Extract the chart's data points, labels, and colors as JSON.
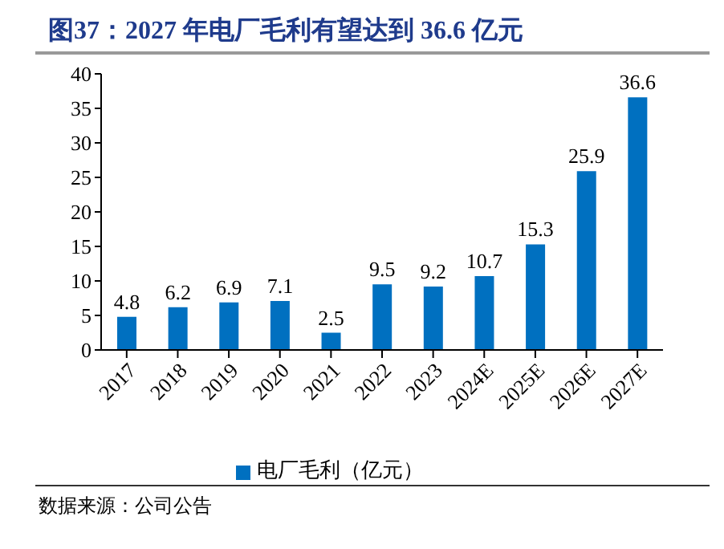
{
  "chart_data": {
    "type": "bar",
    "title": "图37：2027 年电厂毛利有望达到 36.6 亿元",
    "annotations": [
      "数据来源：公司公告"
    ],
    "categories": [
      "2017",
      "2018",
      "2019",
      "2020",
      "2021",
      "2022",
      "2023",
      "2024E",
      "2025E",
      "2026E",
      "2027E"
    ],
    "series": [
      {
        "name": "电厂毛利（亿元）",
        "color": "#0070c0",
        "values": [
          4.8,
          6.2,
          6.9,
          7.1,
          2.5,
          9.5,
          9.2,
          10.7,
          15.3,
          25.9,
          36.6
        ]
      }
    ],
    "ylim": [
      0,
      40
    ],
    "yticks": [
      0,
      5,
      10,
      15,
      20,
      25,
      30,
      35,
      40
    ],
    "data_labels": true,
    "legend": "bottom",
    "grid": false
  }
}
